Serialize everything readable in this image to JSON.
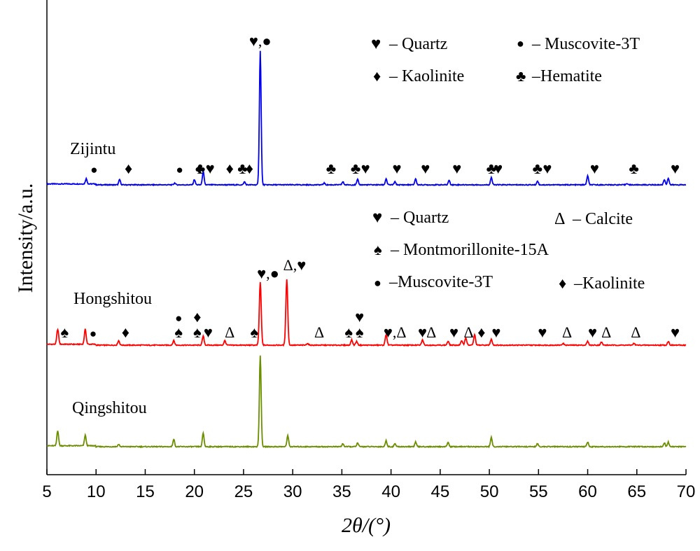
{
  "chart_data": {
    "type": "line",
    "xlabel": "2θ/(°)",
    "ylabel": "Intensity/a.u.",
    "xlim": [
      5,
      70
    ],
    "x_ticks": [
      "5",
      "10",
      "15",
      "20",
      "25",
      "30",
      "35",
      "40",
      "45",
      "50",
      "55",
      "60",
      "65",
      "70"
    ],
    "y_ticks_shown": false,
    "series": [
      {
        "name": "Zijintu",
        "color": "#0000ee",
        "peaks": [
          [
            9.0,
            0.035
          ],
          [
            12.4,
            0.035
          ],
          [
            18.0,
            0.012
          ],
          [
            20.0,
            0.035
          ],
          [
            20.9,
            0.09
          ],
          [
            25.1,
            0.02
          ],
          [
            26.7,
            0.88
          ],
          [
            33.2,
            0.012
          ],
          [
            35.1,
            0.02
          ],
          [
            36.6,
            0.035
          ],
          [
            39.5,
            0.04
          ],
          [
            40.4,
            0.02
          ],
          [
            42.5,
            0.04
          ],
          [
            45.9,
            0.03
          ],
          [
            50.2,
            0.05
          ],
          [
            54.9,
            0.025
          ],
          [
            60.0,
            0.06
          ],
          [
            64.0,
            0.01
          ],
          [
            67.8,
            0.035
          ],
          [
            68.2,
            0.045
          ]
        ]
      },
      {
        "name": "Hongshitou",
        "color": "#ff0000",
        "peaks": [
          [
            6.1,
            0.1
          ],
          [
            8.9,
            0.1
          ],
          [
            12.3,
            0.03
          ],
          [
            17.9,
            0.03
          ],
          [
            20.9,
            0.06
          ],
          [
            23.1,
            0.03
          ],
          [
            26.7,
            0.42
          ],
          [
            29.4,
            0.44
          ],
          [
            31.5,
            0.012
          ],
          [
            36.0,
            0.035
          ],
          [
            36.5,
            0.025
          ],
          [
            39.5,
            0.07
          ],
          [
            43.2,
            0.035
          ],
          [
            45.8,
            0.025
          ],
          [
            47.2,
            0.03
          ],
          [
            47.6,
            0.05
          ],
          [
            48.5,
            0.07
          ],
          [
            50.2,
            0.04
          ],
          [
            57.5,
            0.012
          ],
          [
            60.0,
            0.025
          ],
          [
            61.4,
            0.02
          ],
          [
            64.7,
            0.012
          ],
          [
            68.2,
            0.025
          ]
        ]
      },
      {
        "name": "Qingshitou",
        "color": "#6b8e00",
        "peaks": [
          [
            6.1,
            0.1
          ],
          [
            8.9,
            0.07
          ],
          [
            12.3,
            0.015
          ],
          [
            17.9,
            0.05
          ],
          [
            20.9,
            0.09
          ],
          [
            26.7,
            0.6
          ],
          [
            29.5,
            0.075
          ],
          [
            35.1,
            0.02
          ],
          [
            36.6,
            0.025
          ],
          [
            39.5,
            0.04
          ],
          [
            40.4,
            0.02
          ],
          [
            42.5,
            0.03
          ],
          [
            45.8,
            0.03
          ],
          [
            50.2,
            0.06
          ],
          [
            54.9,
            0.02
          ],
          [
            60.0,
            0.03
          ],
          [
            67.8,
            0.025
          ],
          [
            68.2,
            0.03
          ]
        ]
      }
    ],
    "zijintu_legend": {
      "entries": [
        {
          "symbol": "♥",
          "text": "– Quartz"
        },
        {
          "symbol": "●",
          "text": "– Muscovite-3T"
        },
        {
          "symbol": "♦",
          "text": "– Kaolinite"
        },
        {
          "symbol": "♣",
          "text": "–Hematite"
        }
      ]
    },
    "hongshitou_legend": {
      "entries": [
        {
          "symbol": "♥",
          "text": "– Quartz"
        },
        {
          "symbol": "Δ",
          "text": "– Calcite"
        },
        {
          "symbol": "♠",
          "text": "– Montmorillonite-15A"
        },
        {
          "symbol": "●",
          "text": "–Muscovite-3T"
        },
        {
          "symbol": "♦",
          "text": "–Kaolinite"
        }
      ]
    },
    "zijintu_markers": [
      {
        "x": 9.8,
        "s": "●"
      },
      {
        "x": 13.3,
        "s": "♦"
      },
      {
        "x": 18.5,
        "s": "●"
      },
      {
        "x": 20.5,
        "s": "♦"
      },
      {
        "x": 20.6,
        "s": "♣"
      },
      {
        "x": 21.6,
        "s": "♥"
      },
      {
        "x": 23.6,
        "s": "♦"
      },
      {
        "x": 24.9,
        "s": "♣"
      },
      {
        "x": 25.6,
        "s": "♦"
      },
      {
        "x": 26.7,
        "s": "♥,●"
      },
      {
        "x": 33.9,
        "s": "♣"
      },
      {
        "x": 36.4,
        "s": "♣"
      },
      {
        "x": 37.4,
        "s": "♥"
      },
      {
        "x": 40.6,
        "s": "♥"
      },
      {
        "x": 43.5,
        "s": "♥"
      },
      {
        "x": 46.7,
        "s": "♥"
      },
      {
        "x": 50.2,
        "s": "♣"
      },
      {
        "x": 50.9,
        "s": "♥"
      },
      {
        "x": 54.9,
        "s": "♣"
      },
      {
        "x": 55.9,
        "s": "♥"
      },
      {
        "x": 60.7,
        "s": "♥"
      },
      {
        "x": 64.7,
        "s": "♣"
      },
      {
        "x": 68.9,
        "s": "♥"
      }
    ],
    "hongshitou_markers": [
      {
        "x": 6.8,
        "s": "♠"
      },
      {
        "x": 9.7,
        "s": "●"
      },
      {
        "x": 13.0,
        "s": "♦"
      },
      {
        "x": 18.4,
        "s": "♠"
      },
      {
        "x": 18.4,
        "s": "●"
      },
      {
        "x": 20.3,
        "s": "♠"
      },
      {
        "x": 20.3,
        "s": "♦"
      },
      {
        "x": 21.4,
        "s": "♥"
      },
      {
        "x": 23.6,
        "s": "Δ"
      },
      {
        "x": 26.1,
        "s": "♠"
      },
      {
        "x": 27.5,
        "s": "♥,●"
      },
      {
        "x": 30.2,
        "s": "Δ,♥"
      },
      {
        "x": 32.7,
        "s": "Δ"
      },
      {
        "x": 35.7,
        "s": "♠"
      },
      {
        "x": 36.8,
        "s": "♠"
      },
      {
        "x": 36.8,
        "s": "♥"
      },
      {
        "x": 40.4,
        "s": "♥,Δ"
      },
      {
        "x": 43.2,
        "s": "♥"
      },
      {
        "x": 44.1,
        "s": "Δ"
      },
      {
        "x": 46.4,
        "s": "♥"
      },
      {
        "x": 47.9,
        "s": "Δ"
      },
      {
        "x": 49.2,
        "s": "♦"
      },
      {
        "x": 50.7,
        "s": "♥"
      },
      {
        "x": 55.4,
        "s": "♥"
      },
      {
        "x": 57.9,
        "s": "Δ"
      },
      {
        "x": 60.5,
        "s": "♥"
      },
      {
        "x": 61.9,
        "s": "Δ"
      },
      {
        "x": 64.9,
        "s": "Δ"
      },
      {
        "x": 68.9,
        "s": "♥"
      }
    ]
  }
}
